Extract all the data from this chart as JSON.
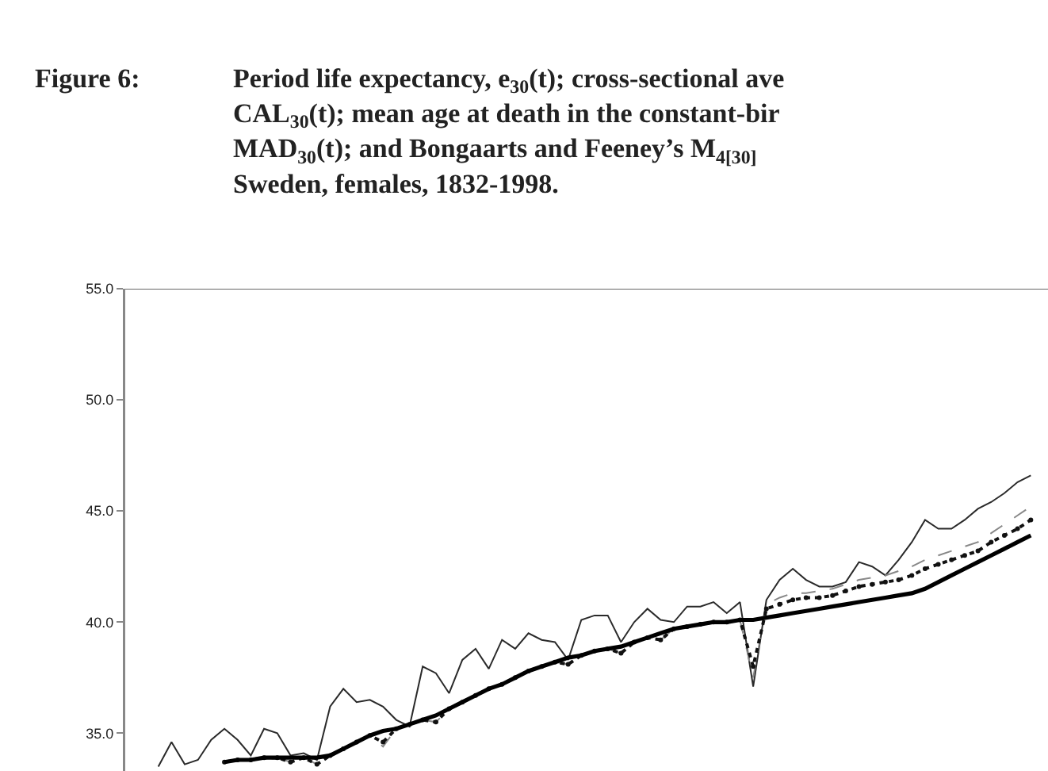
{
  "chart_data": {
    "type": "line",
    "title": "Figure 6:",
    "subtitle": "Period life expectancy, e$_{30}$(t); cross-sectional ave\nCAL$_{30}$(t); mean age at death in the constant-bir\nMAD$_{30}$(t); and Bongaarts and Feeney’s M$_{4[30]}$\nSweden, females, 1832-1998.",
    "categories": [
      null,
      null,
      null,
      null,
      null,
      null,
      null,
      null,
      null,
      null,
      null,
      null,
      null,
      null,
      null,
      null,
      null,
      null,
      null,
      null,
      null,
      null,
      null,
      null,
      null,
      null,
      null,
      null,
      null,
      null,
      null,
      null,
      null,
      null,
      null,
      null,
      null,
      null,
      null,
      null,
      null,
      null,
      null,
      null,
      null,
      null,
      null,
      null,
      null,
      null,
      null,
      null,
      null,
      null,
      null,
      null,
      null,
      null,
      null,
      null,
      null,
      null,
      null,
      null,
      null,
      null,
      null
    ],
    "series": [
      {
        "color": "#2a2a2a",
        "line_style": "solid",
        "marker": "none",
        "values": [
          33.5,
          34.6,
          33.6,
          33.8,
          34.7,
          35.2,
          34.7,
          34.0,
          35.2,
          35.0,
          34.0,
          34.1,
          33.8,
          36.2,
          37.0,
          36.4,
          36.5,
          36.2,
          35.6,
          35.3,
          38.0,
          37.7,
          36.8,
          38.3,
          38.8,
          37.9,
          39.2,
          38.8,
          39.5,
          39.2,
          39.1,
          38.3,
          40.1,
          40.3,
          40.3,
          39.1,
          40.0,
          40.6,
          40.1,
          40.0,
          40.7,
          40.7,
          40.9,
          40.4,
          40.9,
          37.1,
          41.0,
          41.9,
          42.4,
          41.9,
          41.6,
          41.6,
          41.8,
          42.7,
          42.5,
          42.1,
          42.8,
          43.6,
          44.6,
          44.2,
          44.2,
          44.6,
          45.1,
          45.4,
          45.8,
          46.3,
          46.6
        ]
      },
      {
        "color": "#888888",
        "line_style": "dashed",
        "marker": "none",
        "values": [
          null,
          null,
          null,
          null,
          null,
          33.7,
          33.8,
          33.8,
          33.9,
          33.9,
          33.7,
          33.9,
          33.6,
          34.0,
          34.3,
          34.6,
          34.9,
          34.4,
          35.2,
          35.4,
          35.6,
          35.5,
          36.1,
          36.4,
          36.7,
          37.0,
          37.2,
          37.5,
          37.8,
          38.0,
          38.2,
          38.1,
          38.5,
          38.7,
          38.8,
          38.6,
          39.1,
          39.3,
          39.2,
          39.7,
          39.8,
          39.9,
          40.0,
          40.0,
          40.1,
          37.5,
          40.8,
          41.1,
          41.3,
          41.3,
          41.4,
          41.5,
          41.7,
          41.9,
          42.0,
          42.1,
          42.3,
          42.5,
          42.8,
          43.0,
          43.2,
          43.4,
          43.6,
          44.0,
          44.4,
          44.8,
          45.2
        ]
      },
      {
        "color": "#111111",
        "line_style": "dotted",
        "marker": "circle",
        "values": [
          null,
          null,
          null,
          null,
          null,
          33.7,
          33.8,
          33.8,
          33.9,
          33.9,
          33.7,
          33.9,
          33.6,
          34.0,
          34.3,
          34.6,
          34.9,
          34.6,
          35.2,
          35.4,
          35.6,
          35.5,
          36.1,
          36.4,
          36.7,
          37.0,
          37.2,
          37.5,
          37.8,
          38.0,
          38.2,
          38.1,
          38.5,
          38.7,
          38.8,
          38.6,
          39.1,
          39.3,
          39.2,
          39.7,
          39.8,
          39.9,
          40.0,
          40.0,
          40.1,
          38.0,
          40.6,
          40.8,
          41.0,
          41.1,
          41.1,
          41.2,
          41.4,
          41.6,
          41.7,
          41.8,
          41.9,
          42.1,
          42.4,
          42.6,
          42.8,
          43.0,
          43.2,
          43.6,
          43.9,
          44.2,
          44.6
        ]
      },
      {
        "color": "#000000",
        "line_style": "solid",
        "marker": "none",
        "values": [
          null,
          null,
          null,
          null,
          null,
          33.7,
          33.8,
          33.8,
          33.9,
          33.9,
          33.9,
          33.9,
          33.9,
          34.0,
          34.3,
          34.6,
          34.9,
          35.1,
          35.2,
          35.4,
          35.6,
          35.8,
          36.1,
          36.4,
          36.7,
          37.0,
          37.2,
          37.5,
          37.8,
          38.0,
          38.2,
          38.4,
          38.5,
          38.7,
          38.8,
          38.9,
          39.1,
          39.3,
          39.5,
          39.7,
          39.8,
          39.9,
          40.0,
          40.0,
          40.1,
          40.1,
          40.2,
          40.3,
          40.4,
          40.5,
          40.6,
          40.7,
          40.8,
          40.9,
          41.0,
          41.1,
          41.2,
          41.3,
          41.5,
          41.8,
          42.1,
          42.4,
          42.7,
          43.0,
          43.3,
          43.6,
          43.9
        ]
      }
    ],
    "ylim": [
      33.3,
      55
    ],
    "yticks": [
      {
        "value": 35,
        "label": "35.0"
      },
      {
        "value": 40,
        "label": "40.0"
      },
      {
        "value": 45,
        "label": "45.0"
      },
      {
        "value": 50,
        "label": "50.0"
      },
      {
        "value": 55,
        "label": "55.0"
      }
    ],
    "tick_labels": "y"
  }
}
